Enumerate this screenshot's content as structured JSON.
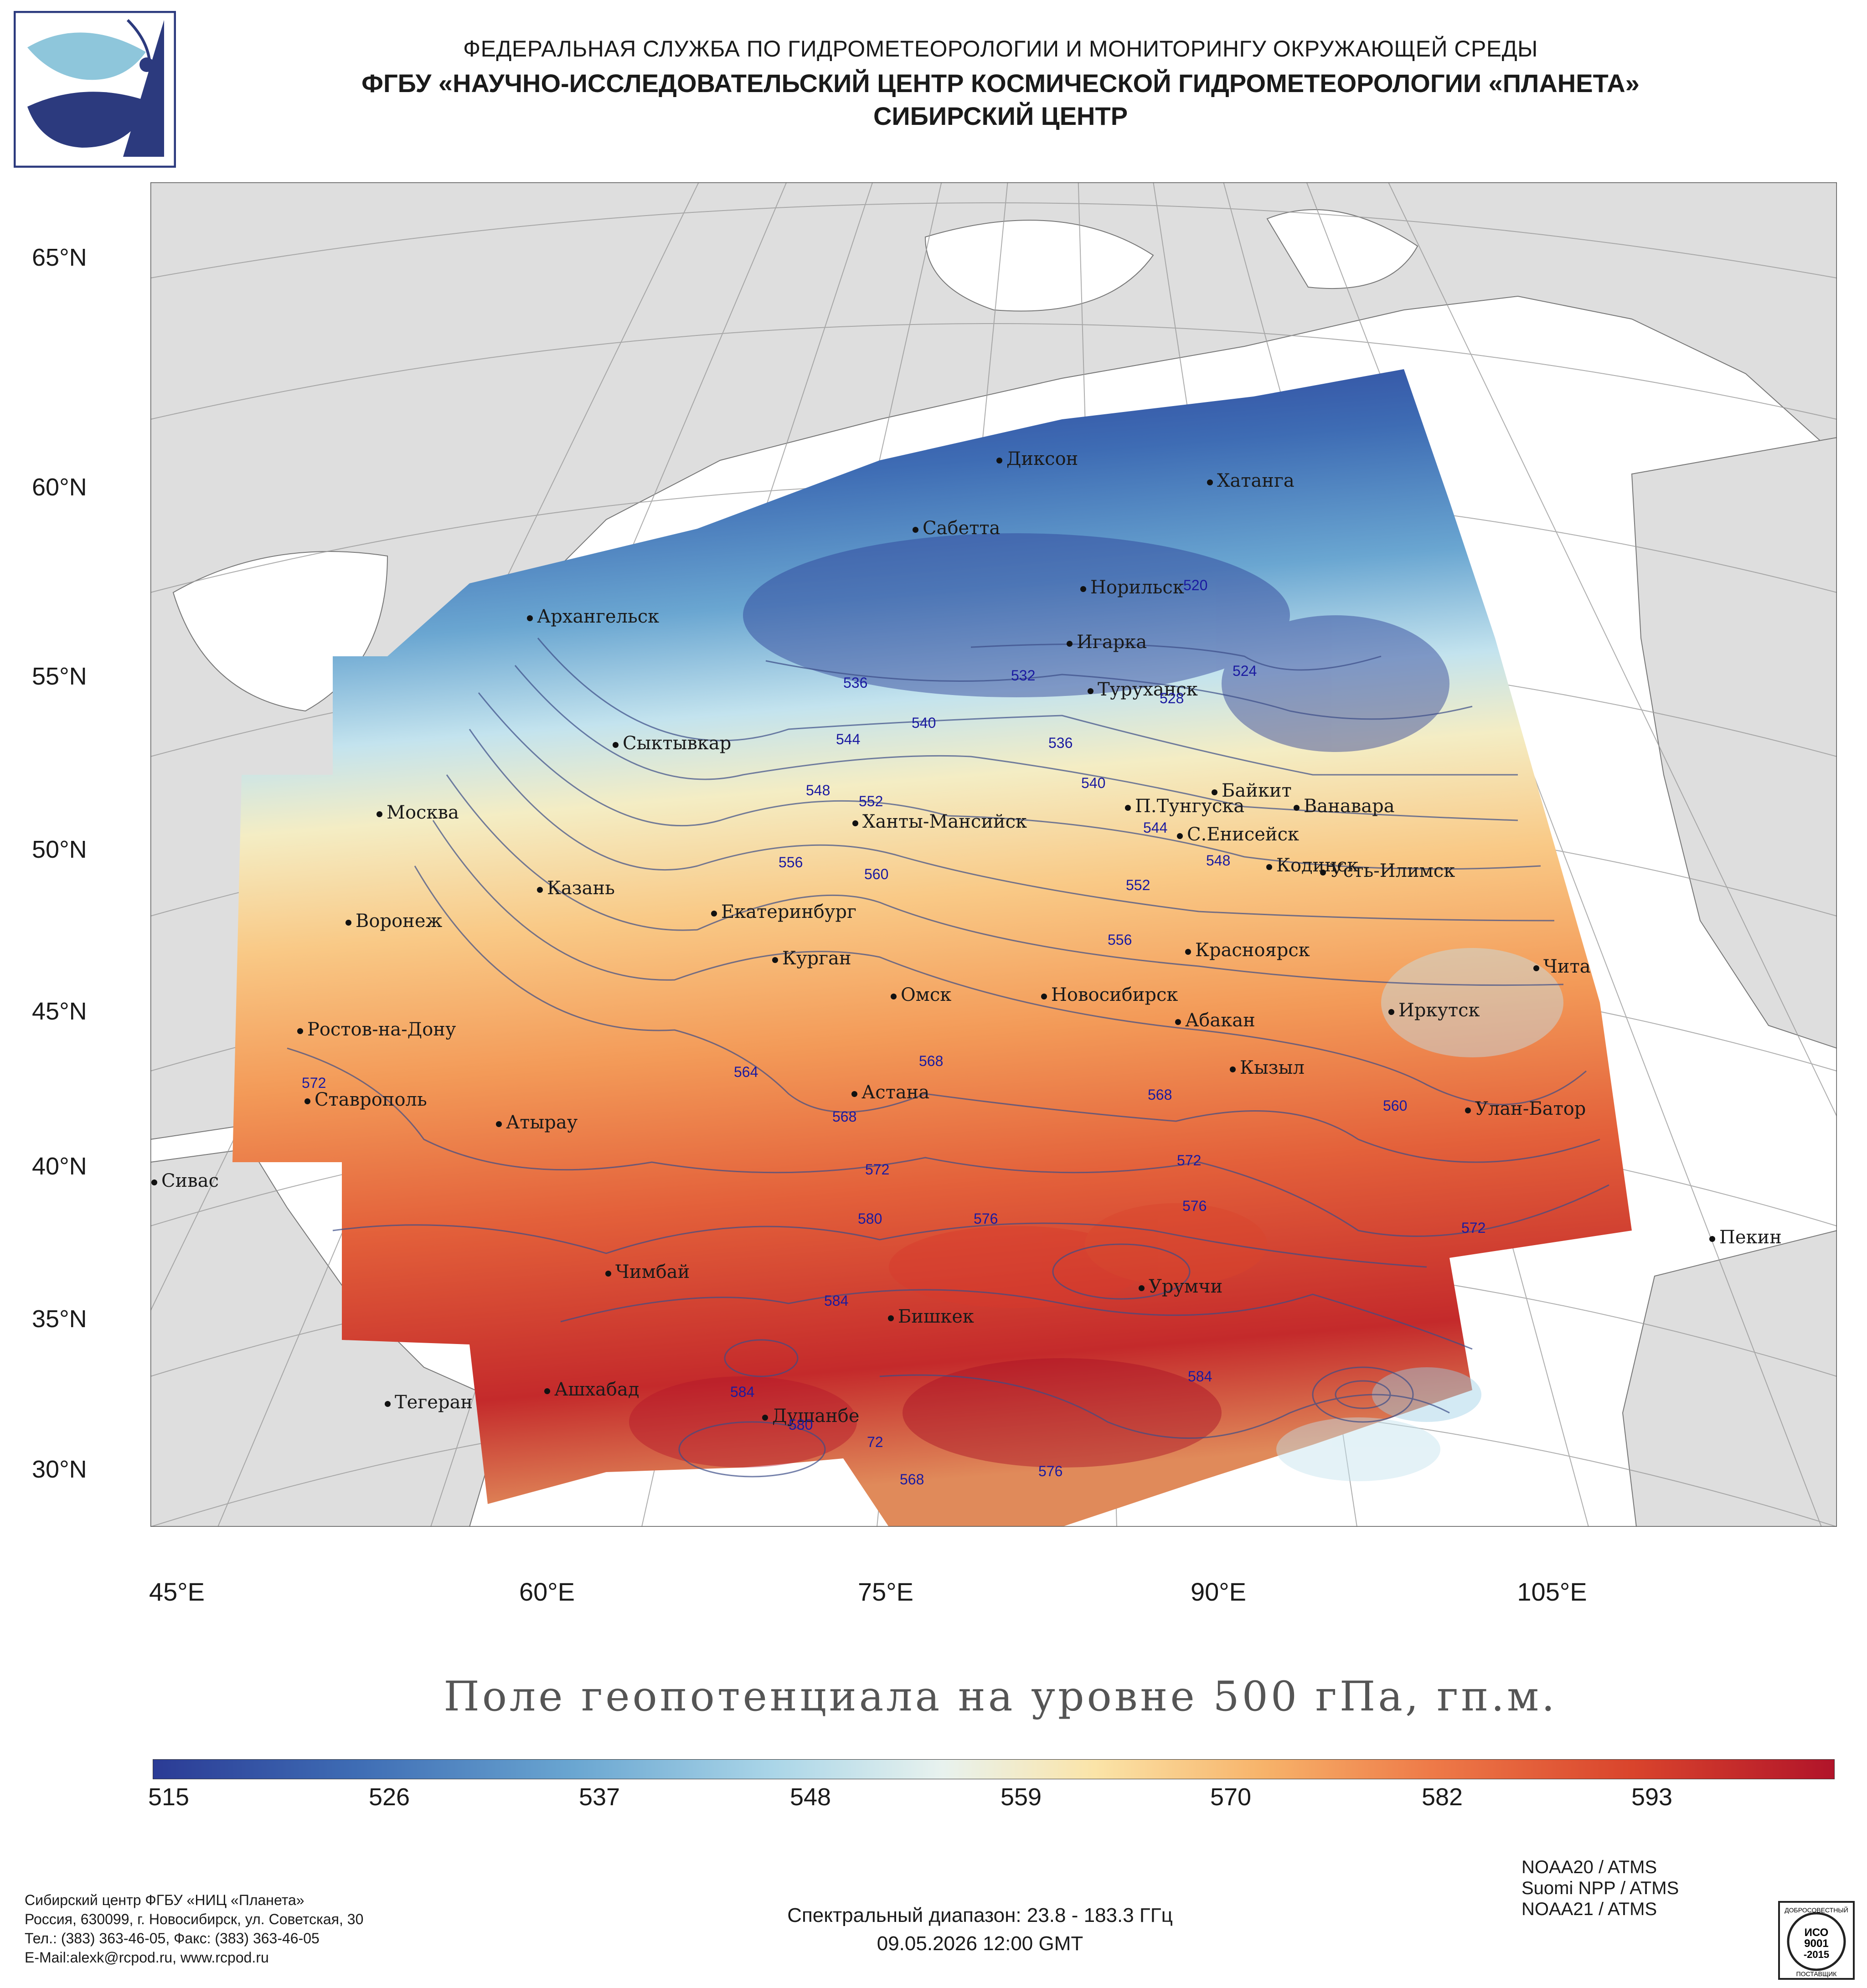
{
  "header": {
    "line1": "ФЕДЕРАЛЬНАЯ СЛУЖБА ПО ГИДРОМЕТЕОРОЛОГИИ И МОНИТОРИНГУ ОКРУЖАЮЩЕЙ СРЕДЫ",
    "line2": "ФГБУ «НАУЧНО-ИССЛЕДОВАТЕЛЬСКИЙ ЦЕНТР КОСМИЧЕСКОЙ ГИДРОМЕТЕОРОЛОГИИ «ПЛАНЕТА»",
    "line3": "СИБИРСКИЙ ЦЕНТР"
  },
  "logo": {
    "icon": "planeta-logo-icon",
    "colors": [
      "#2c3a7e",
      "#8ec6db"
    ]
  },
  "map": {
    "lat_labels": [
      "65°N",
      "60°N",
      "55°N",
      "50°N",
      "45°N",
      "40°N",
      "35°N",
      "30°N"
    ],
    "lon_labels": [
      "45°E",
      "60°E",
      "75°E",
      "90°E",
      "105°E"
    ],
    "cities": [
      "Диксон",
      "Хатанга",
      "Сабетта",
      "Норильск",
      "Архангельск",
      "Игарка",
      "Туруханск",
      "Сыктывкар",
      "Байкит",
      "П.Тунгуска",
      "Ванавара",
      "Москва",
      "Ханты-Мансийск",
      "С.Енисейск",
      "Кодинск",
      "Усть-Илимск",
      "Казань",
      "Екатеринбург",
      "Воронеж",
      "Курган",
      "Красноярск",
      "Чита",
      "Омск",
      "Новосибирск",
      "Иркутск",
      "Ростов-на-Дону",
      "Абакан",
      "Кызыл",
      "Ставрополь",
      "Астана",
      "Улан-Батор",
      "Атырау",
      "Сивас",
      "Пекин",
      "Чимбай",
      "Урумчи",
      "Бишкек",
      "Ашхабад",
      "Тегеран",
      "Душанбе"
    ],
    "isolines": [
      "520",
      "524",
      "528",
      "532",
      "536",
      "536",
      "540",
      "540",
      "544",
      "544",
      "548",
      "548",
      "552",
      "552",
      "556",
      "556",
      "560",
      "560",
      "564",
      "568",
      "568",
      "568",
      "572",
      "572",
      "572",
      "572",
      "576",
      "576",
      "576",
      "580",
      "580",
      "584",
      "584",
      "584",
      "568",
      "72"
    ]
  },
  "title": "Поле геопотенциала на уровне 500 гПа, гп.м.",
  "colorbar": {
    "ticks": [
      "515",
      "526",
      "537",
      "548",
      "559",
      "570",
      "582",
      "593"
    ],
    "colors": [
      "#2b3b95",
      "#3e6cb4",
      "#6aa6d1",
      "#abd6e8",
      "#e8f2ee",
      "#fbe4a8",
      "#f7b36a",
      "#ee7a48",
      "#d9442c",
      "#b1142a"
    ]
  },
  "footer": {
    "org1": "Сибирский центр ФГБУ «НИЦ «Планета»",
    "org2": "Россия, 630099, г. Новосибирск, ул. Советская, 30",
    "org3": "Тел.: (383) 363-46-05, Факс: (383) 363-46-05",
    "org4": "E-Mail:alexk@rcpod.ru, www.rcpod.ru",
    "spectral": "Спектральный диапазон: 23.8 - 183.3 ГГц",
    "datetime": "09.05.2026 12:00 GMT",
    "sat1": "NOAA20 / ATMS",
    "sat2": "Suomi NPP / ATMS",
    "sat3": "NOAA21 / ATMS",
    "seal_top": "ДОБРОСОВЕСТНЫЙ",
    "seal_mid1": "ИСО",
    "seal_mid2": "9001",
    "seal_mid3": "-2015",
    "seal_bottom": "ПОСТАВЩИК"
  }
}
